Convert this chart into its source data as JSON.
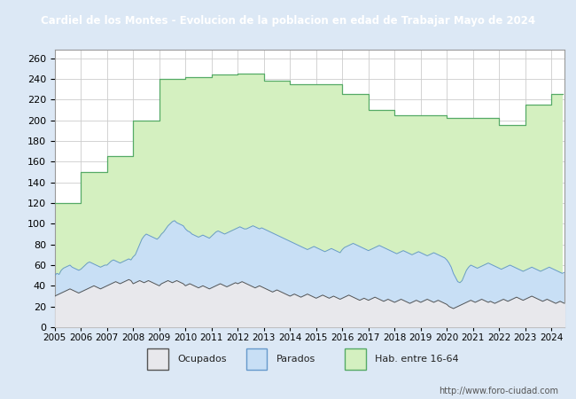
{
  "title": "Cardiel de los Montes - Evolucion de la poblacion en edad de Trabajar Mayo de 2024",
  "title_bg": "#4169b0",
  "title_color": "#ffffff",
  "url_text": "http://www.foro-ciudad.com",
  "ylim": [
    0,
    268
  ],
  "yticks": [
    0,
    20,
    40,
    60,
    80,
    100,
    120,
    140,
    160,
    180,
    200,
    220,
    240,
    260
  ],
  "xtick_years": [
    2005,
    2006,
    2007,
    2008,
    2009,
    2010,
    2011,
    2012,
    2013,
    2014,
    2015,
    2016,
    2017,
    2018,
    2019,
    2020,
    2021,
    2022,
    2023,
    2024
  ],
  "legend_labels": [
    "Ocupados",
    "Parados",
    "Hab. entre 16-64"
  ],
  "area_ocupados_color": "#e8e8ec",
  "area_ocupados_edge": "#555555",
  "area_parados_color": "#c8dff5",
  "area_parados_edge": "#6699cc",
  "area_hab_color": "#d4f0c0",
  "area_hab_edge": "#55aa66",
  "grid_color": "#cccccc",
  "plot_bg": "#ffffff",
  "outer_bg": "#dce8f5",
  "hab1664_steps": [
    [
      2005,
      120
    ],
    [
      2006,
      150
    ],
    [
      2007,
      165
    ],
    [
      2008,
      200
    ],
    [
      2009,
      240
    ],
    [
      2010,
      242
    ],
    [
      2011,
      244
    ],
    [
      2012,
      245
    ],
    [
      2013,
      238
    ],
    [
      2014,
      235
    ],
    [
      2015,
      235
    ],
    [
      2016,
      225
    ],
    [
      2017,
      210
    ],
    [
      2018,
      205
    ],
    [
      2019,
      205
    ],
    [
      2020,
      202
    ],
    [
      2021,
      202
    ],
    [
      2022,
      195
    ],
    [
      2023,
      215
    ],
    [
      2024,
      225
    ]
  ],
  "parados_monthly": [
    50,
    52,
    51,
    55,
    57,
    58,
    59,
    60,
    58,
    57,
    56,
    55,
    56,
    58,
    60,
    62,
    63,
    62,
    61,
    60,
    59,
    58,
    59,
    60,
    60,
    62,
    64,
    65,
    64,
    63,
    62,
    63,
    64,
    65,
    66,
    65,
    68,
    70,
    75,
    80,
    85,
    88,
    90,
    89,
    88,
    87,
    86,
    85,
    87,
    90,
    92,
    95,
    98,
    100,
    102,
    103,
    101,
    100,
    99,
    98,
    95,
    93,
    92,
    90,
    89,
    88,
    87,
    88,
    89,
    88,
    87,
    86,
    88,
    90,
    92,
    93,
    92,
    91,
    90,
    91,
    92,
    93,
    94,
    95,
    96,
    97,
    96,
    95,
    95,
    96,
    97,
    98,
    97,
    96,
    95,
    96,
    95,
    94,
    93,
    92,
    91,
    90,
    89,
    88,
    87,
    86,
    85,
    84,
    83,
    82,
    81,
    80,
    79,
    78,
    77,
    76,
    75,
    76,
    77,
    78,
    77,
    76,
    75,
    74,
    73,
    74,
    75,
    76,
    75,
    74,
    73,
    72,
    75,
    77,
    78,
    79,
    80,
    81,
    80,
    79,
    78,
    77,
    76,
    75,
    74,
    75,
    76,
    77,
    78,
    79,
    78,
    77,
    76,
    75,
    74,
    73,
    72,
    71,
    72,
    73,
    74,
    73,
    72,
    71,
    70,
    71,
    72,
    73,
    72,
    71,
    70,
    69,
    70,
    71,
    72,
    71,
    70,
    69,
    68,
    67,
    65,
    62,
    58,
    52,
    48,
    44,
    43,
    45,
    50,
    55,
    58,
    60,
    59,
    58,
    57,
    58,
    59,
    60,
    61,
    62,
    61,
    60,
    59,
    58,
    57,
    56,
    57,
    58,
    59,
    60,
    59,
    58,
    57,
    56,
    55,
    54,
    55,
    56,
    57,
    58,
    57,
    56,
    55,
    54,
    55,
    56,
    57,
    58,
    57,
    56,
    55,
    54,
    53,
    52,
    53,
    54,
    55,
    56,
    57,
    56,
    55
  ],
  "ocupados_monthly": [
    30,
    31,
    32,
    33,
    34,
    35,
    36,
    37,
    36,
    35,
    34,
    33,
    34,
    35,
    36,
    37,
    38,
    39,
    40,
    39,
    38,
    37,
    38,
    39,
    40,
    41,
    42,
    43,
    44,
    43,
    42,
    43,
    44,
    45,
    46,
    45,
    42,
    43,
    44,
    45,
    44,
    43,
    44,
    45,
    44,
    43,
    42,
    41,
    40,
    42,
    43,
    44,
    45,
    44,
    43,
    44,
    45,
    44,
    43,
    42,
    40,
    41,
    42,
    41,
    40,
    39,
    38,
    39,
    40,
    39,
    38,
    37,
    38,
    39,
    40,
    41,
    42,
    41,
    40,
    39,
    40,
    41,
    42,
    43,
    42,
    43,
    44,
    43,
    42,
    41,
    40,
    39,
    38,
    39,
    40,
    39,
    38,
    37,
    36,
    35,
    34,
    35,
    36,
    35,
    34,
    33,
    32,
    31,
    30,
    31,
    32,
    31,
    30,
    29,
    30,
    31,
    32,
    31,
    30,
    29,
    28,
    29,
    30,
    31,
    30,
    29,
    28,
    29,
    30,
    29,
    28,
    27,
    28,
    29,
    30,
    31,
    30,
    29,
    28,
    27,
    26,
    27,
    28,
    27,
    26,
    27,
    28,
    29,
    28,
    27,
    26,
    25,
    26,
    27,
    26,
    25,
    24,
    25,
    26,
    27,
    26,
    25,
    24,
    23,
    24,
    25,
    26,
    25,
    24,
    25,
    26,
    27,
    26,
    25,
    24,
    25,
    26,
    25,
    24,
    23,
    22,
    20,
    19,
    18,
    19,
    20,
    21,
    22,
    23,
    24,
    25,
    26,
    25,
    24,
    25,
    26,
    27,
    26,
    25,
    24,
    25,
    24,
    23,
    24,
    25,
    26,
    27,
    26,
    25,
    26,
    27,
    28,
    29,
    28,
    27,
    26,
    27,
    28,
    29,
    30,
    29,
    28,
    27,
    26,
    25,
    26,
    27,
    26,
    25,
    24,
    23,
    24,
    25,
    24,
    23,
    24,
    25,
    24,
    23,
    22,
    23
  ]
}
